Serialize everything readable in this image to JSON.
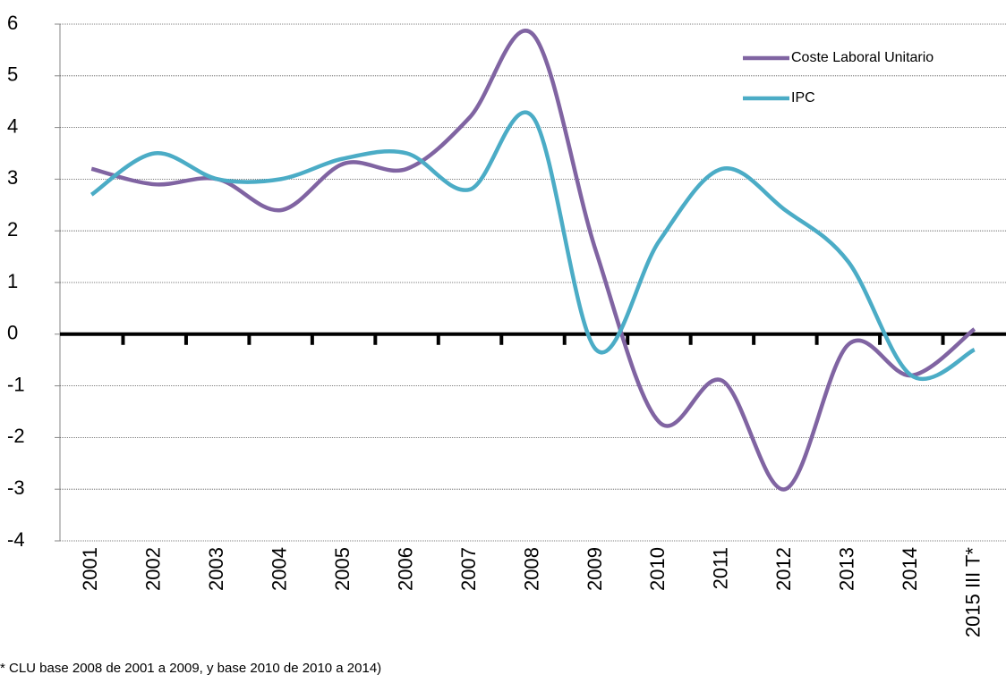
{
  "chart_data": {
    "type": "line",
    "categories": [
      "2001",
      "2002",
      "2003",
      "2004",
      "2005",
      "2006",
      "2007",
      "2008",
      "2009",
      "2010",
      "2011",
      "2012",
      "2013",
      "2014",
      "2015 III T*"
    ],
    "series": [
      {
        "name": "Coste Laboral Unitario",
        "color": "#8064a2",
        "values": [
          3.2,
          2.9,
          3.0,
          2.4,
          3.3,
          3.2,
          4.2,
          5.8,
          1.6,
          -1.7,
          -0.9,
          -3.0,
          -0.2,
          -0.8,
          0.1
        ]
      },
      {
        "name": "IPC",
        "color": "#4bacc6",
        "values": [
          2.7,
          3.5,
          3.0,
          3.0,
          3.4,
          3.5,
          2.8,
          4.2,
          -0.3,
          1.8,
          3.2,
          2.4,
          1.4,
          -0.8,
          -0.3
        ]
      }
    ],
    "ylim": [
      -4,
      6
    ],
    "yticks": [
      -4,
      -3,
      -2,
      -1,
      0,
      1,
      2,
      3,
      4,
      5,
      6
    ],
    "grid": true,
    "legend": "top-right",
    "smooth": true,
    "note": "* CLU base 2008 de 2001 a 2009, y base 2010 de 2010 a 2014)"
  }
}
